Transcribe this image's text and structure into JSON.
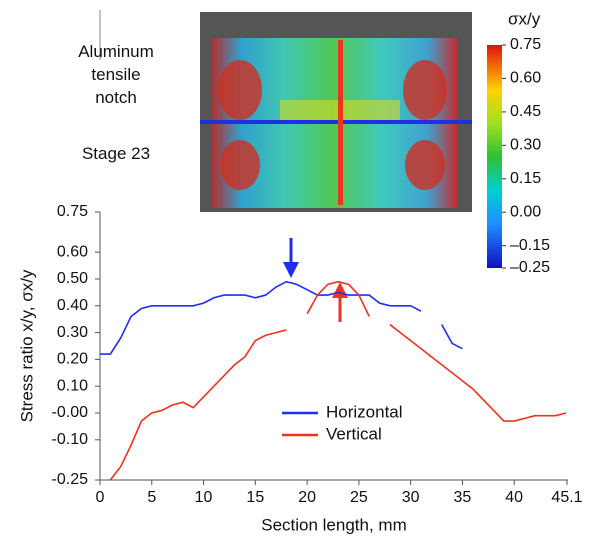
{
  "chart_data": {
    "type": "line",
    "annotations": [
      "Aluminum tensile notch",
      "Stage 23"
    ],
    "x_label": "Section length, mm",
    "y_label": "Stress ratio x/y, σx/y",
    "x": [
      0,
      1,
      2,
      3,
      4,
      5,
      6,
      7,
      8,
      9,
      10,
      11,
      12,
      13,
      14,
      15,
      16,
      17,
      18,
      19,
      20,
      21,
      22,
      23,
      24,
      25,
      26,
      27,
      28,
      29,
      30,
      31,
      32,
      33,
      34,
      35,
      36,
      37,
      38,
      39,
      40,
      41,
      42,
      43,
      44,
      45
    ],
    "series": [
      {
        "name": "Horizontal",
        "color": "#1f2ef0",
        "values": [
          0.22,
          0.22,
          0.28,
          0.36,
          0.39,
          0.4,
          0.4,
          0.4,
          0.4,
          0.4,
          0.41,
          0.43,
          0.44,
          0.44,
          0.44,
          0.43,
          0.44,
          0.47,
          0.49,
          0.48,
          0.46,
          0.44,
          0.44,
          0.45,
          0.44,
          0.44,
          0.44,
          0.41,
          0.4,
          0.4,
          0.4,
          0.38,
          null,
          0.33,
          0.26,
          0.24,
          null,
          null,
          null,
          null,
          null,
          null,
          null,
          null,
          null,
          null
        ]
      },
      {
        "name": "Vertical",
        "color": "#f0321e",
        "values": [
          null,
          -0.25,
          -0.2,
          -0.12,
          -0.03,
          0.0,
          0.01,
          0.03,
          0.04,
          0.02,
          0.06,
          0.1,
          0.14,
          0.18,
          0.21,
          0.27,
          0.29,
          0.3,
          0.31,
          null,
          0.37,
          0.44,
          0.48,
          0.49,
          0.48,
          0.44,
          0.36,
          null,
          0.33,
          0.3,
          0.27,
          0.24,
          0.21,
          0.18,
          0.15,
          0.12,
          0.09,
          0.05,
          0.01,
          -0.03,
          -0.03,
          -0.02,
          -0.01,
          -0.01,
          -0.01,
          0.0
        ]
      }
    ],
    "xlim": [
      0,
      45.1
    ],
    "xticks": [
      0,
      5,
      10,
      15,
      20,
      25,
      30,
      35,
      40,
      45.1
    ],
    "ylim": [
      -0.25,
      0.75
    ],
    "yticks": [
      0.75,
      {
        "value": 0.6,
        "label": "0.60"
      },
      {
        "value": 0.5,
        "label": "0.50"
      },
      {
        "value": 0.4,
        "label": "0.40"
      },
      {
        "value": 0.3,
        "label": "0.30"
      },
      {
        "value": 0.2,
        "label": "0.20"
      },
      {
        "value": 0.1,
        "label": "0.10"
      },
      {
        "value": 0,
        "label": "-0.00"
      },
      {
        "value": -0.1,
        "label": "-0.10"
      },
      -0.25
    ],
    "colorbar": {
      "label": "σx/y",
      "lim": [
        -0.25,
        0.75
      ],
      "ticks": [
        0.75,
        {
          "value": 0.6,
          "label": "0.60"
        },
        {
          "value": 0.45,
          "label": "0.45"
        },
        {
          "value": 0.3,
          "label": "0.30"
        },
        {
          "value": 0.15,
          "label": "0.15"
        },
        {
          "value": 0,
          "label": "0.00"
        },
        {
          "value": -0.15,
          "label": "–0.15"
        },
        {
          "value": -0.25,
          "label": "–0.25"
        }
      ]
    }
  }
}
